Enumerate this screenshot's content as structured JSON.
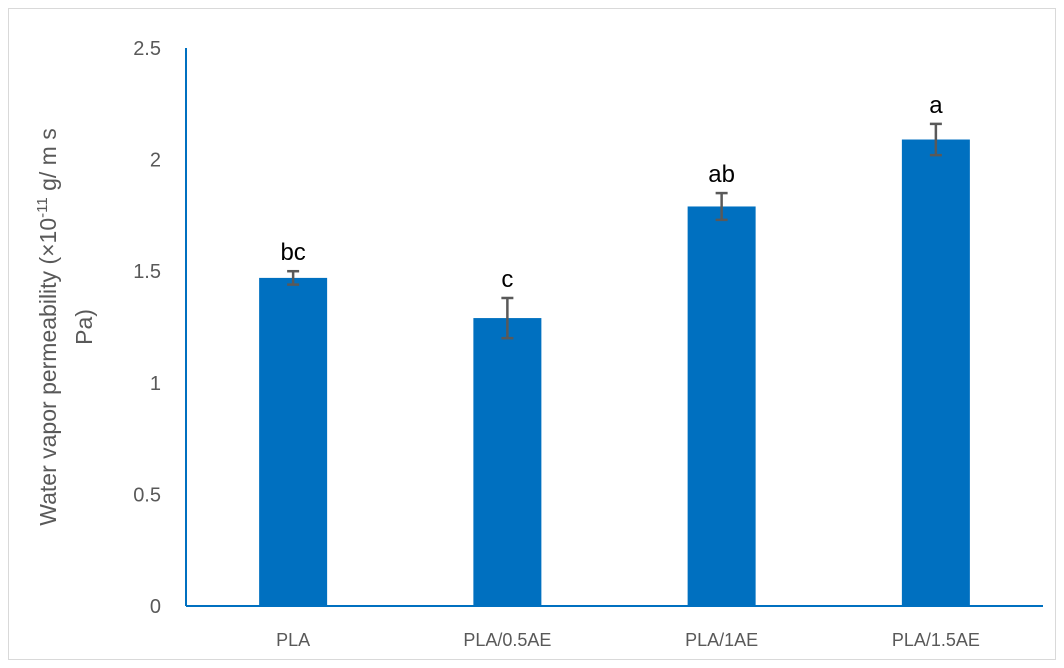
{
  "chart_data": {
    "type": "bar",
    "categories": [
      "PLA",
      "PLA/0.5AE",
      "PLA/1AE",
      "PLA/1.5AE"
    ],
    "values": [
      1.47,
      1.29,
      1.79,
      2.09
    ],
    "errors": [
      0.03,
      0.09,
      0.06,
      0.07
    ],
    "annotations": [
      "bc",
      "c",
      "ab",
      "a"
    ],
    "ylabel_line1_pre": "Water vapor permeability  (×10",
    "ylabel_sup": "-11",
    "ylabel_line1_post": " g/ m s",
    "ylabel_line2": "Pa)",
    "xlabel": "",
    "ylim": [
      0,
      2.5
    ],
    "yticks": [
      "0",
      "0.5",
      "1",
      "1.5",
      "2",
      "2.5"
    ],
    "ytick_values": [
      0,
      0.5,
      1,
      1.5,
      2,
      2.5
    ],
    "grid": false,
    "bar_color": "#0070c0",
    "errorbar_color": "#595959",
    "axis_color": "#0070c0"
  }
}
